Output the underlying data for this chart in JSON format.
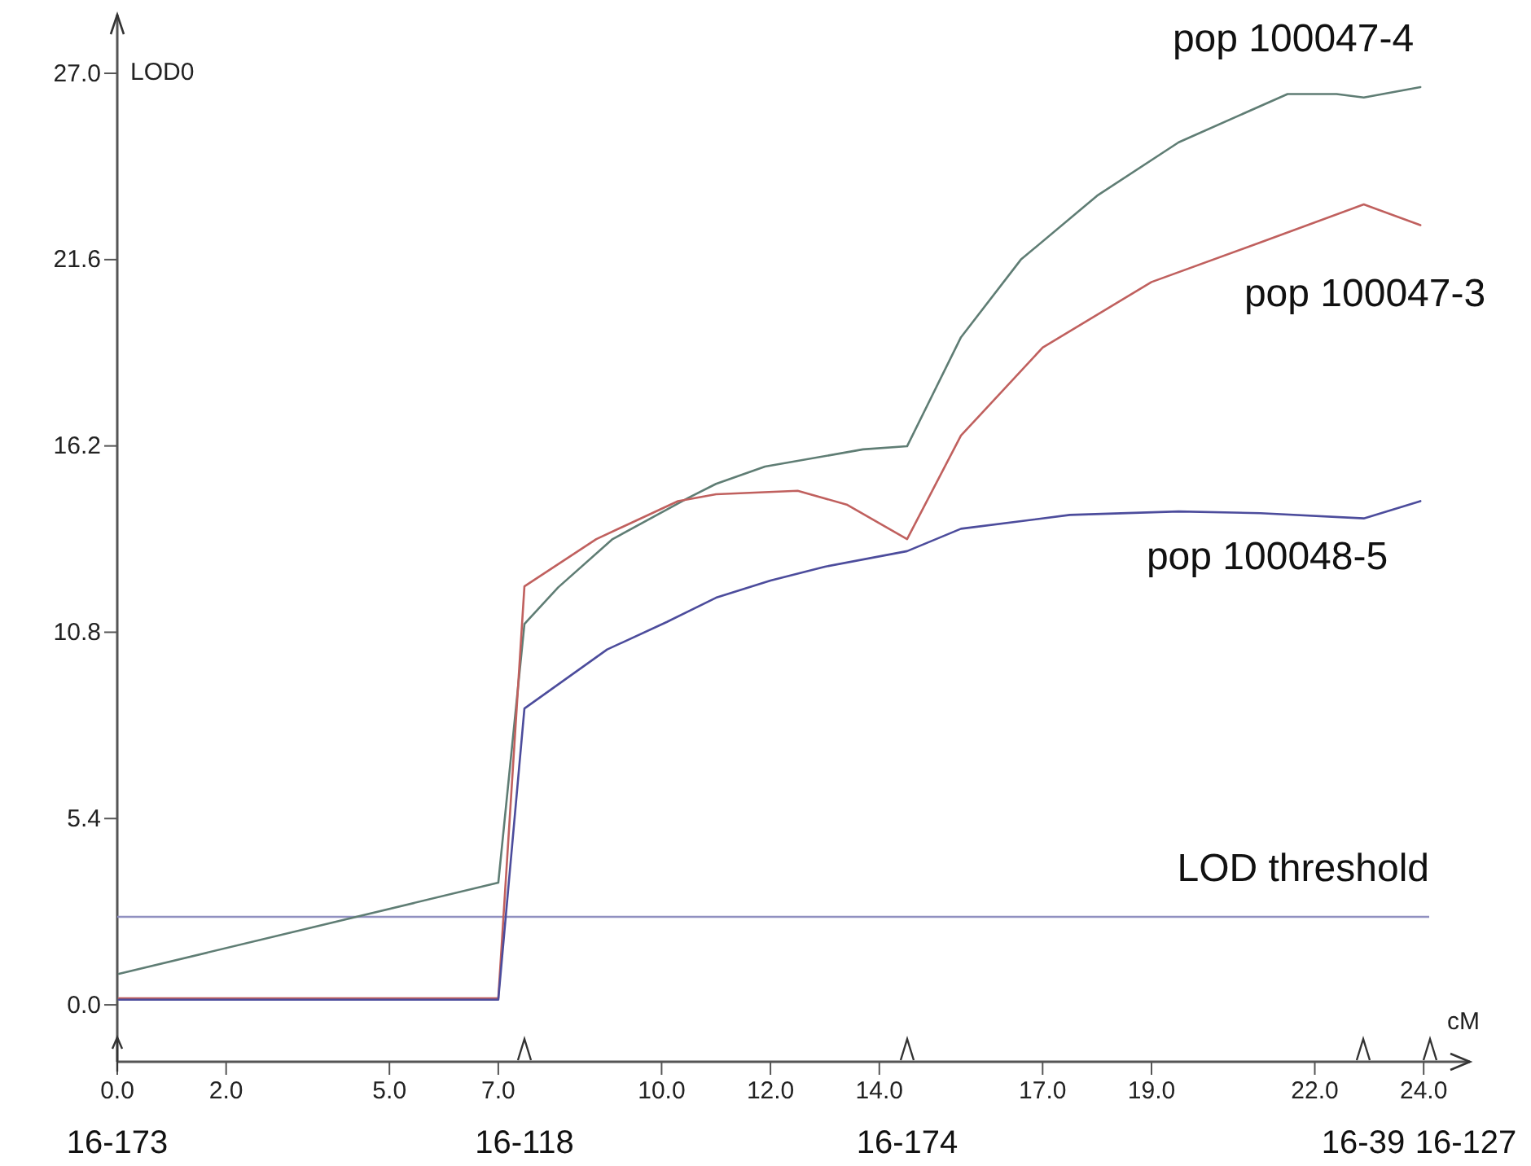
{
  "chart_data": {
    "type": "line",
    "xlabel": "cM",
    "ylabel": "LOD0",
    "xlim": [
      0,
      24.85
    ],
    "ylim": [
      -1.65,
      28.7
    ],
    "xticks": [
      {
        "value": 0,
        "label": "0.0"
      },
      {
        "value": 2,
        "label": "2.0"
      },
      {
        "value": 5,
        "label": "5.0"
      },
      {
        "value": 7,
        "label": "7.0"
      },
      {
        "value": 10,
        "label": "10.0"
      },
      {
        "value": 12,
        "label": "12.0"
      },
      {
        "value": 14,
        "label": "14.0"
      },
      {
        "value": 17,
        "label": "17.0"
      },
      {
        "value": 19,
        "label": "19.0"
      },
      {
        "value": 22,
        "label": "22.0"
      },
      {
        "value": 24,
        "label": "24.0"
      }
    ],
    "yticks": [
      {
        "value": 0,
        "label": "0.0"
      },
      5.4,
      10.8,
      16.2,
      21.6,
      {
        "value": 27,
        "label": "27.0"
      }
    ],
    "grid": false,
    "legend": false,
    "marker": "none",
    "line_style": "solid",
    "annotations": [
      "16-173",
      "16-118",
      "16-174",
      "16-39",
      "16-127"
    ],
    "series": [
      {
        "name": "pop 100047-4",
        "color": "#5f7d74",
        "x": [
          0.03,
          7.0,
          7.48,
          8.1,
          9.1,
          10.5,
          11.0,
          11.9,
          13.7,
          14.51,
          15.5,
          16.6,
          18.0,
          19.5,
          21.5,
          22.4,
          22.9,
          23.94
        ],
        "values": [
          0.9,
          3.54,
          11.04,
          12.1,
          13.5,
          14.7,
          15.1,
          15.6,
          16.1,
          16.19,
          19.35,
          21.6,
          23.45,
          25.0,
          26.4,
          26.4,
          26.3,
          26.6
        ]
      },
      {
        "name": "pop 100047-3",
        "color": "#c0605e",
        "x": [
          0.03,
          7.0,
          7.48,
          8.8,
          10.3,
          11.0,
          12.5,
          13.4,
          14.51,
          15.5,
          17.0,
          19.0,
          21.0,
          22.9,
          23.94
        ],
        "values": [
          0.19,
          0.19,
          12.13,
          13.5,
          14.6,
          14.8,
          14.9,
          14.5,
          13.5,
          16.5,
          19.05,
          20.95,
          22.1,
          23.2,
          22.6
        ]
      },
      {
        "name": "pop 100048-5",
        "color": "#4c4c9c",
        "x": [
          0.03,
          7.0,
          7.48,
          9.0,
          10.1,
          11.0,
          12.0,
          13.0,
          14.51,
          15.5,
          17.5,
          19.5,
          21.0,
          22.9,
          23.94
        ],
        "values": [
          0.15,
          0.15,
          8.59,
          10.3,
          11.1,
          11.8,
          12.3,
          12.7,
          13.15,
          13.8,
          14.2,
          14.3,
          14.25,
          14.1,
          14.6
        ]
      }
    ],
    "ref_lines": [
      {
        "axis": "y",
        "value": 2.55,
        "label": "LOD threshold",
        "color": "#9090c0"
      }
    ]
  }
}
